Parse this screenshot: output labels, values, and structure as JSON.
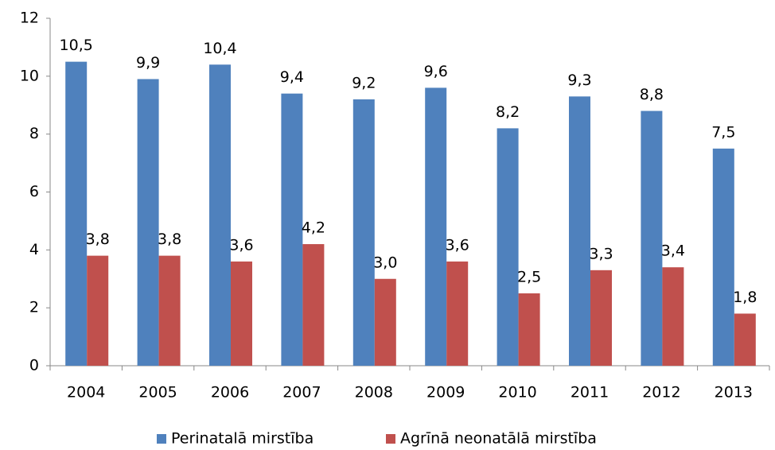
{
  "chart_data": {
    "type": "bar",
    "categories": [
      "2004",
      "2005",
      "2006",
      "2007",
      "2008",
      "2009",
      "2010",
      "2011",
      "2012",
      "2013"
    ],
    "series": [
      {
        "name": "Perinatalā mirstība",
        "color": "#4f81bd",
        "values": [
          10.5,
          9.9,
          10.4,
          9.4,
          9.2,
          9.6,
          8.2,
          9.3,
          8.8,
          7.5
        ],
        "value_labels": [
          "10,5",
          "9,9",
          "10,4",
          "9,4",
          "9,2",
          "9,6",
          "8,2",
          "9,3",
          "8,8",
          "7,5"
        ]
      },
      {
        "name": "Agrīnā neonatālā mirstība",
        "color": "#c0504d",
        "values": [
          3.8,
          3.8,
          3.6,
          4.2,
          3.0,
          3.6,
          2.5,
          3.3,
          3.4,
          1.8
        ],
        "value_labels": [
          "3,8",
          "3,8",
          "3,6",
          "4,2",
          "3,0",
          "3,6",
          "2,5",
          "3,3",
          "3,4",
          "1,8"
        ]
      }
    ],
    "ylim": [
      0,
      12
    ],
    "yticks": [
      0,
      2,
      4,
      6,
      8,
      10,
      12
    ],
    "grid": false,
    "legend": "bottom"
  }
}
